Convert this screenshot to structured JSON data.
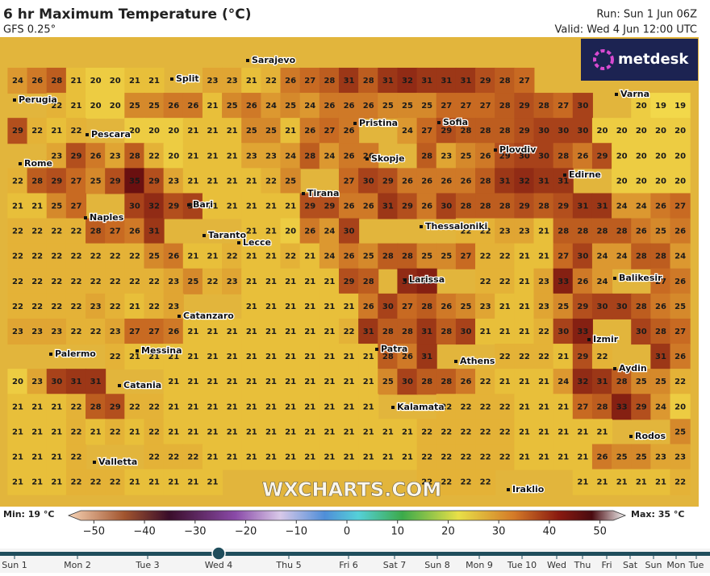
{
  "header": {
    "title": "6 hr Maximum Temperature (°C)",
    "subtitle": "GFS 0.25°",
    "run": "Run: Sun 1 Jun 06Z",
    "valid": "Valid: Wed 4 Jun 12:00 UTC"
  },
  "logo": "metdesk",
  "watermark": "WXCHARTS.COM",
  "cities": [
    "Sarajevo",
    "Split",
    "Perugia",
    "Pescara",
    "Rome",
    "Bari",
    "Naples",
    "Taranto",
    "Lecce",
    "Catanzaro",
    "Palermo",
    "Messina",
    "Catania",
    "Valletta",
    "Pristina",
    "Sofia",
    "Plovdiv",
    "Skopje",
    "Tirana",
    "Edirne",
    "Varna",
    "Thessaloniki",
    "Larissa",
    "Balikesir",
    "Izmir",
    "Patra",
    "Athens",
    "Aydin",
    "Kalamata",
    "Rodos",
    "Iraklio"
  ],
  "grid": {
    "rows": [
      [
        24,
        26,
        28,
        21,
        20,
        20,
        21,
        21,
        null,
        null,
        23,
        23,
        21,
        22,
        26,
        27,
        28,
        31,
        28,
        31,
        32,
        31,
        31,
        31,
        29,
        28,
        27,
        null,
        null,
        null,
        null,
        null,
        null,
        null,
        null
      ],
      [
        null,
        null,
        22,
        21,
        20,
        20,
        25,
        25,
        26,
        26,
        21,
        25,
        26,
        24,
        25,
        24,
        26,
        26,
        26,
        25,
        25,
        25,
        27,
        27,
        27,
        28,
        29,
        28,
        27,
        30,
        null,
        null,
        20,
        19,
        19
      ],
      [
        29,
        22,
        21,
        22,
        null,
        null,
        20,
        20,
        20,
        21,
        21,
        21,
        25,
        25,
        21,
        26,
        27,
        26,
        null,
        null,
        24,
        27,
        29,
        28,
        28,
        28,
        29,
        30,
        30,
        30,
        20,
        20,
        20,
        20,
        20
      ],
      [
        null,
        null,
        23,
        29,
        26,
        23,
        28,
        22,
        20,
        21,
        21,
        21,
        23,
        23,
        24,
        28,
        24,
        26,
        26,
        null,
        null,
        28,
        23,
        25,
        26,
        29,
        30,
        30,
        28,
        26,
        29,
        20,
        20,
        20,
        20
      ],
      [
        22,
        28,
        29,
        27,
        25,
        29,
        35,
        29,
        23,
        21,
        21,
        21,
        21,
        22,
        25,
        null,
        null,
        27,
        30,
        29,
        26,
        26,
        26,
        26,
        28,
        31,
        32,
        31,
        31,
        null,
        null,
        20,
        20,
        20,
        20
      ],
      [
        21,
        21,
        25,
        27,
        null,
        null,
        30,
        32,
        29,
        30,
        21,
        21,
        21,
        21,
        21,
        29,
        29,
        26,
        26,
        31,
        29,
        26,
        30,
        28,
        28,
        28,
        29,
        28,
        29,
        31,
        31,
        24,
        24,
        26,
        27
      ],
      [
        22,
        22,
        22,
        22,
        28,
        27,
        26,
        31,
        null,
        null,
        null,
        null,
        21,
        21,
        20,
        26,
        24,
        30,
        null,
        null,
        null,
        null,
        null,
        22,
        22,
        23,
        23,
        21,
        28,
        28,
        28,
        28,
        26,
        25,
        26
      ],
      [
        22,
        22,
        22,
        22,
        22,
        22,
        22,
        25,
        26,
        21,
        21,
        22,
        21,
        21,
        22,
        21,
        24,
        26,
        25,
        28,
        28,
        25,
        25,
        27,
        22,
        22,
        21,
        21,
        27,
        30,
        24,
        24,
        28,
        28,
        24
      ],
      [
        22,
        22,
        22,
        22,
        22,
        22,
        22,
        22,
        23,
        25,
        22,
        23,
        21,
        21,
        21,
        21,
        21,
        29,
        28,
        null,
        32,
        33,
        null,
        null,
        22,
        22,
        21,
        23,
        33,
        26,
        24,
        null,
        null,
        27,
        26
      ],
      [
        22,
        22,
        22,
        22,
        23,
        22,
        21,
        22,
        23,
        null,
        null,
        null,
        21,
        21,
        21,
        21,
        21,
        21,
        26,
        30,
        27,
        28,
        26,
        25,
        23,
        21,
        21,
        23,
        25,
        29,
        30,
        30,
        28,
        26,
        25
      ],
      [
        23,
        23,
        23,
        22,
        22,
        23,
        27,
        27,
        26,
        21,
        21,
        21,
        21,
        21,
        21,
        21,
        21,
        22,
        31,
        28,
        28,
        31,
        28,
        30,
        21,
        21,
        21,
        22,
        30,
        33,
        null,
        null,
        30,
        28,
        27
      ],
      [
        null,
        null,
        null,
        null,
        null,
        22,
        21,
        21,
        21,
        21,
        21,
        21,
        21,
        21,
        21,
        21,
        21,
        21,
        21,
        28,
        26,
        31,
        null,
        null,
        null,
        22,
        22,
        22,
        21,
        29,
        22,
        null,
        null,
        31,
        26
      ],
      [
        20,
        23,
        30,
        31,
        31,
        null,
        null,
        null,
        21,
        21,
        21,
        21,
        21,
        21,
        21,
        21,
        21,
        21,
        21,
        25,
        30,
        28,
        28,
        26,
        22,
        21,
        21,
        21,
        24,
        32,
        31,
        28,
        25,
        25,
        22
      ],
      [
        21,
        21,
        21,
        22,
        28,
        29,
        22,
        22,
        21,
        21,
        21,
        21,
        21,
        21,
        21,
        21,
        21,
        21,
        21,
        null,
        null,
        null,
        22,
        22,
        22,
        22,
        21,
        21,
        21,
        27,
        28,
        33,
        29,
        24,
        20
      ],
      [
        21,
        21,
        21,
        22,
        21,
        22,
        21,
        22,
        21,
        21,
        21,
        21,
        21,
        21,
        21,
        21,
        21,
        21,
        21,
        21,
        21,
        22,
        22,
        22,
        22,
        22,
        21,
        21,
        21,
        21,
        21,
        null,
        null,
        null,
        25
      ],
      [
        21,
        21,
        21,
        22,
        null,
        null,
        null,
        22,
        22,
        22,
        21,
        21,
        21,
        21,
        21,
        21,
        21,
        21,
        21,
        21,
        21,
        22,
        22,
        22,
        22,
        22,
        21,
        21,
        21,
        21,
        26,
        25,
        25,
        23,
        23
      ],
      [
        21,
        21,
        21,
        22,
        22,
        22,
        21,
        21,
        21,
        21,
        21,
        null,
        null,
        null,
        null,
        null,
        null,
        null,
        null,
        null,
        null,
        22,
        22,
        22,
        22,
        null,
        null,
        null,
        null,
        21,
        21,
        21,
        21,
        21,
        22
      ]
    ]
  },
  "colorbar": {
    "min_label": "Min: 19 °C",
    "max_label": "Max: 35 °C",
    "range": [
      -55,
      55
    ],
    "ticks": [
      {
        "value": -50,
        "label": "−50"
      },
      {
        "value": -40,
        "label": "−40"
      },
      {
        "value": -30,
        "label": "−30"
      },
      {
        "value": -20,
        "label": "−20"
      },
      {
        "value": -10,
        "label": "−10"
      },
      0,
      10,
      20,
      30,
      40,
      50
    ]
  },
  "timeline": {
    "labels": [
      "Sun 1",
      "Mon 2",
      "Tue 3",
      "Wed 4",
      "Thu 5",
      "Fri 6",
      "Sat 7",
      "Sun 8",
      "Mon 9",
      "Tue 10",
      "Wed",
      "Thu",
      "Fri",
      "Sat",
      "Sun",
      "Mon",
      "Tue"
    ],
    "selected": 3
  }
}
